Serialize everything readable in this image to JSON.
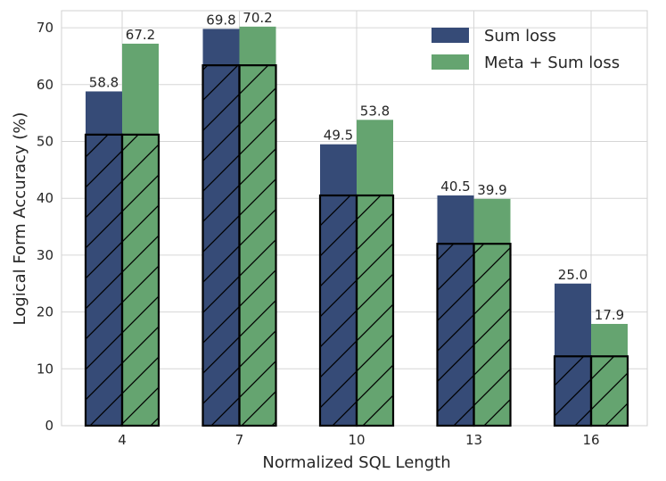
{
  "chart_data": {
    "type": "bar",
    "title": "",
    "xlabel": "Normalized SQL Length",
    "ylabel": "Logical Form Accuracy (%)",
    "ylim": [
      0,
      73
    ],
    "yticks": [
      0,
      10,
      20,
      30,
      40,
      50,
      60,
      70
    ],
    "categories": [
      "4",
      "7",
      "10",
      "13",
      "16"
    ],
    "grid": true,
    "legend_position": "top-right",
    "series": [
      {
        "name": "Sum loss",
        "color": "#364b77",
        "values": [
          58.8,
          69.8,
          49.5,
          40.5,
          25.0
        ],
        "labels": [
          "58.8",
          "69.8",
          "49.5",
          "40.5",
          "25.0"
        ]
      },
      {
        "name": "Meta + Sum loss",
        "color": "#65a470",
        "values": [
          67.2,
          70.2,
          53.8,
          39.9,
          17.9
        ],
        "labels": [
          "67.2",
          "70.2",
          "53.8",
          "39.9",
          "17.9"
        ]
      }
    ],
    "hatched_overlay": {
      "description": "hatched outlined sub-bars shared by both series",
      "values": [
        51.2,
        63.4,
        40.5,
        32.0,
        12.2
      ]
    }
  }
}
